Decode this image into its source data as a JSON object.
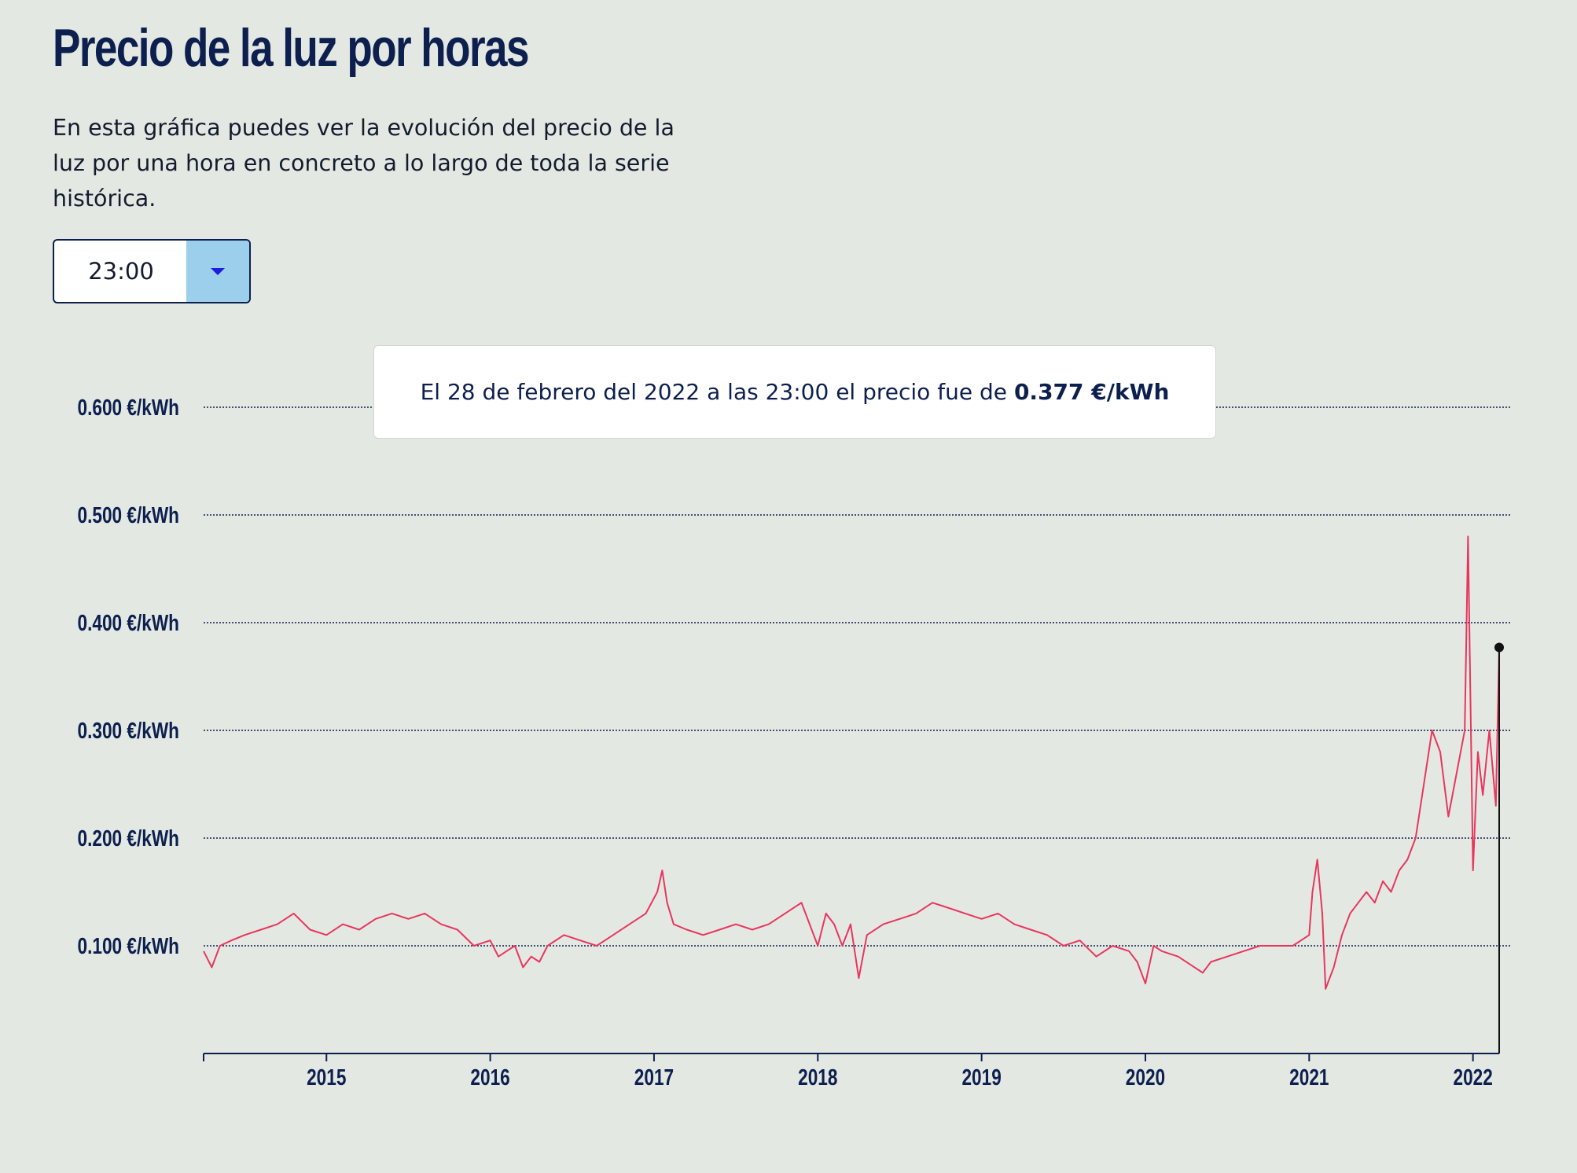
{
  "page": {
    "title": "Precio de la luz por horas",
    "description": "En esta gráfica puedes ver la evolución del precio de la luz por una hora en concreto a lo largo de toda la serie histórica."
  },
  "hour_select": {
    "selected": "23:00",
    "icon": "chevron-down-icon"
  },
  "tooltip": {
    "text": "El 28 de febrero del 2022 a las 23:00 el precio fue de",
    "value": "0.377 €/kWh"
  },
  "colors": {
    "line": "#e8365d",
    "axis": "#0d1f4e",
    "background": "#e3e8e3",
    "select_button": "#9ccfeb"
  },
  "chart_data": {
    "type": "line",
    "unit": "€/kWh",
    "xlim": [
      2014.25,
      2022.16
    ],
    "ylim": [
      0,
      0.6
    ],
    "y_ticks": [
      0.1,
      0.2,
      0.3,
      0.4,
      0.5,
      0.6
    ],
    "y_tick_labels": [
      "0.100 €/kWh",
      "0.200 €/kWh",
      "0.300 €/kWh",
      "0.400 €/kWh",
      "0.500 €/kWh",
      "0.600 €/kWh"
    ],
    "x_ticks": [
      2015,
      2016,
      2017,
      2018,
      2019,
      2020,
      2021,
      2022
    ],
    "x_tick_labels": [
      "2015",
      "2016",
      "2017",
      "2018",
      "2019",
      "2020",
      "2021",
      "2022"
    ],
    "grid": "horizontal dotted",
    "highlight": {
      "x": 2022.16,
      "y": 0.377
    },
    "series": [
      {
        "x": [
          2014.25,
          2014.3,
          2014.35,
          2014.42,
          2014.5,
          2014.6,
          2014.7,
          2014.8,
          2014.9,
          2015.0,
          2015.1,
          2015.2,
          2015.3,
          2015.4,
          2015.5,
          2015.6,
          2015.7,
          2015.8,
          2015.9,
          2016.0,
          2016.05,
          2016.1,
          2016.15,
          2016.2,
          2016.25,
          2016.3,
          2016.35,
          2016.45,
          2016.55,
          2016.65,
          2016.75,
          2016.85,
          2016.95,
          2017.02,
          2017.05,
          2017.08,
          2017.12,
          2017.2,
          2017.3,
          2017.4,
          2017.5,
          2017.6,
          2017.7,
          2017.8,
          2017.9,
          2017.95,
          2018.0,
          2018.05,
          2018.1,
          2018.15,
          2018.2,
          2018.25,
          2018.3,
          2018.4,
          2018.5,
          2018.6,
          2018.7,
          2018.8,
          2018.9,
          2019.0,
          2019.1,
          2019.2,
          2019.3,
          2019.4,
          2019.5,
          2019.6,
          2019.7,
          2019.8,
          2019.9,
          2019.95,
          2020.0,
          2020.05,
          2020.1,
          2020.2,
          2020.3,
          2020.35,
          2020.4,
          2020.5,
          2020.6,
          2020.7,
          2020.8,
          2020.9,
          2020.95,
          2021.0,
          2021.02,
          2021.05,
          2021.08,
          2021.1,
          2021.15,
          2021.2,
          2021.25,
          2021.3,
          2021.35,
          2021.4,
          2021.45,
          2021.5,
          2021.55,
          2021.6,
          2021.65,
          2021.7,
          2021.75,
          2021.8,
          2021.85,
          2021.9,
          2021.95,
          2021.97,
          2022.0,
          2022.03,
          2022.06,
          2022.1,
          2022.14,
          2022.16
        ],
        "y": [
          0.095,
          0.08,
          0.1,
          0.105,
          0.11,
          0.115,
          0.12,
          0.13,
          0.115,
          0.11,
          0.12,
          0.115,
          0.125,
          0.13,
          0.125,
          0.13,
          0.12,
          0.115,
          0.1,
          0.105,
          0.09,
          0.095,
          0.1,
          0.08,
          0.09,
          0.085,
          0.1,
          0.11,
          0.105,
          0.1,
          0.11,
          0.12,
          0.13,
          0.15,
          0.17,
          0.14,
          0.12,
          0.115,
          0.11,
          0.115,
          0.12,
          0.115,
          0.12,
          0.13,
          0.14,
          0.12,
          0.1,
          0.13,
          0.12,
          0.1,
          0.12,
          0.07,
          0.11,
          0.12,
          0.125,
          0.13,
          0.14,
          0.135,
          0.13,
          0.125,
          0.13,
          0.12,
          0.115,
          0.11,
          0.1,
          0.105,
          0.09,
          0.1,
          0.095,
          0.085,
          0.065,
          0.1,
          0.095,
          0.09,
          0.08,
          0.075,
          0.085,
          0.09,
          0.095,
          0.1,
          0.1,
          0.1,
          0.105,
          0.11,
          0.15,
          0.18,
          0.13,
          0.06,
          0.08,
          0.11,
          0.13,
          0.14,
          0.15,
          0.14,
          0.16,
          0.15,
          0.17,
          0.18,
          0.2,
          0.25,
          0.3,
          0.28,
          0.22,
          0.26,
          0.3,
          0.48,
          0.17,
          0.28,
          0.24,
          0.3,
          0.23,
          0.377
        ]
      }
    ]
  }
}
